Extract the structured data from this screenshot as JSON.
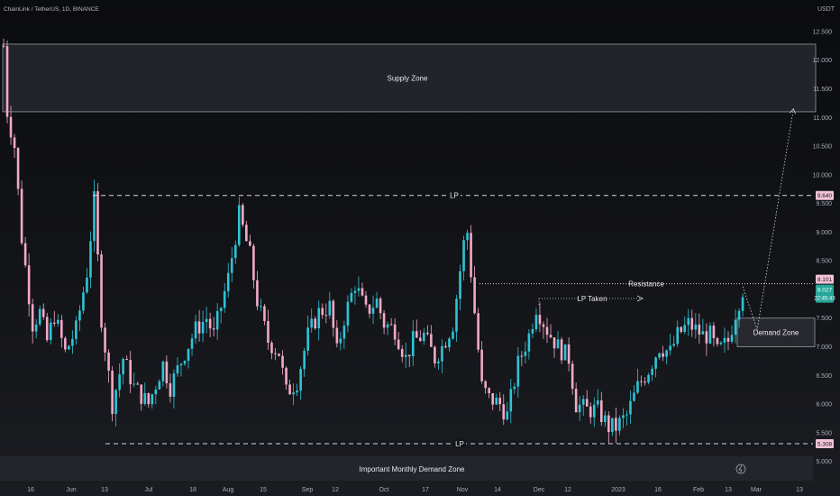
{
  "header": {
    "symbol_title": "ChainLink / TetherUS, 1D, BINANCE",
    "currency": "USDT"
  },
  "colors": {
    "up_candle": "#2ec4d6",
    "down_candle": "#f2a9c6",
    "zone_fill": "#2a2c33",
    "zone_stroke": "#9599a3",
    "dashed_line": "#d5d7dc",
    "resistance_line": "#d5d7dc",
    "lp_label_bg": "#f3c3d6",
    "price_label_bg": "#26a69a"
  },
  "annotations": {
    "supply_zone": "Supply Zone",
    "demand_zone": "Demand Zone",
    "monthly_demand_zone": "Important Monthly Demand Zone",
    "lp_top": "LP",
    "lp_bottom": "LP",
    "resistance": "Resistance",
    "lp_taken": "LP Taken"
  },
  "chart_data": {
    "type": "candlestick",
    "price_axis": {
      "ylim": [
        4.9,
        13.05
      ],
      "ticks": [
        "12.500",
        "12.000",
        "11.500",
        "11.000",
        "10.500",
        "10.000",
        "9.500",
        "9.000",
        "8.500",
        "8.000",
        "7.500",
        "7.000",
        "6.500",
        "6.000",
        "5.500",
        "5.000"
      ]
    },
    "time_axis": {
      "labels": [
        "16",
        "Jun",
        "13",
        "Jul",
        "18",
        "Aug",
        "15",
        "Sep",
        "12",
        "Oct",
        "17",
        "Nov",
        "14",
        "Dec",
        "12",
        "2023",
        "16",
        "Feb",
        "13",
        "Mar",
        "13"
      ]
    },
    "price_labels": {
      "lp_top": "9.640",
      "resistance": "8.101",
      "last_price": "8.027",
      "countdown": "22:45:43",
      "lp_bottom": "5.308"
    },
    "levels": {
      "supply_zone": [
        11.1,
        12.28
      ],
      "demand_zone": [
        7.0,
        7.5
      ],
      "monthly_demand_zone": [
        4.6,
        4.95
      ],
      "lp_top": 9.64,
      "lp_bottom": 5.31,
      "resistance": 8.1
    },
    "path_waypoints": [
      {
        "t": 0,
        "p": 12.25
      },
      {
        "t": 1,
        "p": 11.1
      },
      {
        "t": 3,
        "p": 10.5
      },
      {
        "t": 5,
        "p": 8.9
      },
      {
        "t": 8,
        "p": 7.4
      },
      {
        "t": 10,
        "p": 7.6
      },
      {
        "t": 12,
        "p": 7.1
      },
      {
        "t": 14,
        "p": 7.55
      },
      {
        "t": 17,
        "p": 6.9
      },
      {
        "t": 20,
        "p": 7.3
      },
      {
        "t": 23,
        "p": 8.3
      },
      {
        "t": 25,
        "p": 9.55
      },
      {
        "t": 27,
        "p": 7.5
      },
      {
        "t": 30,
        "p": 6.0
      },
      {
        "t": 33,
        "p": 6.8
      },
      {
        "t": 36,
        "p": 6.3
      },
      {
        "t": 40,
        "p": 6.0
      },
      {
        "t": 44,
        "p": 6.7
      },
      {
        "t": 46,
        "p": 6.3
      },
      {
        "t": 50,
        "p": 6.9
      },
      {
        "t": 53,
        "p": 7.3
      },
      {
        "t": 56,
        "p": 7.5
      },
      {
        "t": 58,
        "p": 7.2
      },
      {
        "t": 62,
        "p": 8.2
      },
      {
        "t": 65,
        "p": 9.3
      },
      {
        "t": 68,
        "p": 8.6
      },
      {
        "t": 70,
        "p": 7.8
      },
      {
        "t": 73,
        "p": 7.1
      },
      {
        "t": 76,
        "p": 6.9
      },
      {
        "t": 78,
        "p": 6.2
      },
      {
        "t": 81,
        "p": 6.4
      },
      {
        "t": 84,
        "p": 7.2
      },
      {
        "t": 87,
        "p": 7.6
      },
      {
        "t": 90,
        "p": 7.7
      },
      {
        "t": 92,
        "p": 6.9
      },
      {
        "t": 94,
        "p": 7.5
      },
      {
        "t": 97,
        "p": 8.1
      },
      {
        "t": 100,
        "p": 7.6
      },
      {
        "t": 103,
        "p": 7.8
      },
      {
        "t": 105,
        "p": 7.4
      },
      {
        "t": 108,
        "p": 7.3
      },
      {
        "t": 111,
        "p": 6.8
      },
      {
        "t": 113,
        "p": 7.1
      },
      {
        "t": 116,
        "p": 7.2
      },
      {
        "t": 119,
        "p": 6.8
      },
      {
        "t": 121,
        "p": 7.0
      },
      {
        "t": 124,
        "p": 7.4
      },
      {
        "t": 127,
        "p": 8.8
      },
      {
        "t": 128,
        "p": 9.0
      },
      {
        "t": 130,
        "p": 7.6
      },
      {
        "t": 132,
        "p": 6.3
      },
      {
        "t": 134,
        "p": 6.1
      },
      {
        "t": 137,
        "p": 6.0
      },
      {
        "t": 139,
        "p": 5.8
      },
      {
        "t": 142,
        "p": 6.7
      },
      {
        "t": 145,
        "p": 7.2
      },
      {
        "t": 147,
        "p": 7.7
      },
      {
        "t": 150,
        "p": 7.3
      },
      {
        "t": 153,
        "p": 7.0
      },
      {
        "t": 156,
        "p": 6.8
      },
      {
        "t": 158,
        "p": 6.0
      },
      {
        "t": 161,
        "p": 5.9
      },
      {
        "t": 164,
        "p": 5.9
      },
      {
        "t": 167,
        "p": 5.6
      },
      {
        "t": 169,
        "p": 5.6
      },
      {
        "t": 172,
        "p": 5.8
      },
      {
        "t": 175,
        "p": 6.3
      },
      {
        "t": 178,
        "p": 6.6
      },
      {
        "t": 181,
        "p": 7.0
      },
      {
        "t": 184,
        "p": 6.9
      },
      {
        "t": 186,
        "p": 7.2
      },
      {
        "t": 189,
        "p": 7.4
      },
      {
        "t": 191,
        "p": 7.3
      },
      {
        "t": 193,
        "p": 7.2
      },
      {
        "t": 195,
        "p": 7.2
      },
      {
        "t": 197,
        "p": 6.9
      },
      {
        "t": 200,
        "p": 7.1
      },
      {
        "t": 202,
        "p": 7.6
      },
      {
        "t": 204,
        "p": 8.0
      }
    ],
    "projection_path": [
      {
        "t": 204,
        "p": 8.05
      },
      {
        "t": 208,
        "p": 7.3
      },
      {
        "t": 218,
        "p": 11.15
      }
    ]
  }
}
